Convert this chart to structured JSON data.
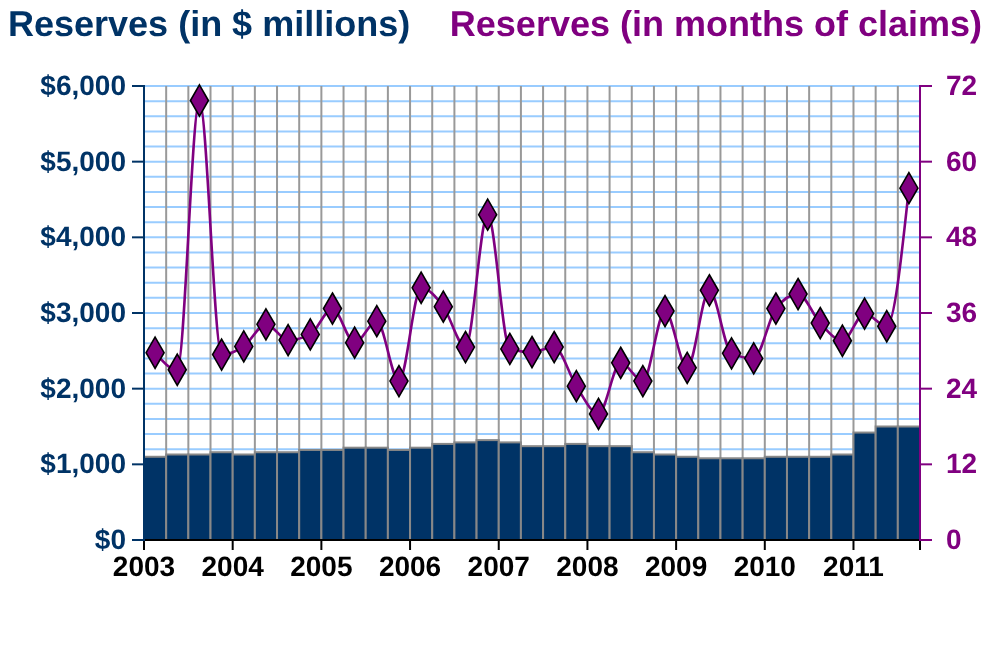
{
  "chart_data": {
    "type": "bar",
    "ylabel": "Reserves (in $ millions)",
    "y2label": "Reserves (in months of claims)",
    "x": [
      2003.125,
      2003.375,
      2003.625,
      2003.875,
      2004.125,
      2004.375,
      2004.625,
      2004.875,
      2005.125,
      2005.375,
      2005.625,
      2005.875,
      2006.125,
      2006.375,
      2006.625,
      2006.875,
      2007.125,
      2007.375,
      2007.625,
      2007.875,
      2008.125,
      2008.375,
      2008.625,
      2008.875,
      2009.125,
      2009.375,
      2009.625,
      2009.875,
      2010.125,
      2010.375,
      2010.625,
      2010.875,
      2011.125,
      2011.375,
      2011.625
    ],
    "xlim": [
      2003,
      2011.75
    ],
    "xticks": [
      2003,
      2004,
      2005,
      2006,
      2007,
      2008,
      2009,
      2010,
      2011
    ],
    "ylim": [
      0,
      6000
    ],
    "yticks": [
      {
        "value": 0,
        "label": "$0"
      },
      {
        "value": 1000,
        "label": "$1,000"
      },
      {
        "value": 2000,
        "label": "$2,000"
      },
      {
        "value": 3000,
        "label": "$3,000"
      },
      {
        "value": 4000,
        "label": "$4,000"
      },
      {
        "value": 5000,
        "label": "$5,000"
      },
      {
        "value": 6000,
        "label": "$6,000"
      }
    ],
    "y2lim": [
      0,
      72
    ],
    "y2ticks": [
      0,
      12,
      24,
      36,
      48,
      60,
      72
    ],
    "grid": true,
    "marker": "diamond",
    "series": [
      {
        "color": "#003366",
        "values": [
          1100,
          1130,
          1130,
          1160,
          1130,
          1160,
          1160,
          1190,
          1190,
          1220,
          1220,
          1190,
          1220,
          1270,
          1290,
          1320,
          1290,
          1240,
          1240,
          1270,
          1240,
          1240,
          1160,
          1130,
          1100,
          1080,
          1080,
          1080,
          1100,
          1100,
          1100,
          1130,
          1420,
          1500,
          1500
        ]
      },
      {
        "type": "line",
        "axis": "y2",
        "color": "#800080",
        "values": [
          29.7,
          27.0,
          69.7,
          29.4,
          30.7,
          34.2,
          31.7,
          32.6,
          36.7,
          31.3,
          34.7,
          25.2,
          40.0,
          37.0,
          30.6,
          51.6,
          30.3,
          29.8,
          30.6,
          24.4,
          20.0,
          28.1,
          25.2,
          36.3,
          27.3,
          39.6,
          29.6,
          28.8,
          36.7,
          39.0,
          34.4,
          31.6,
          35.9,
          33.9,
          55.8
        ]
      }
    ]
  }
}
